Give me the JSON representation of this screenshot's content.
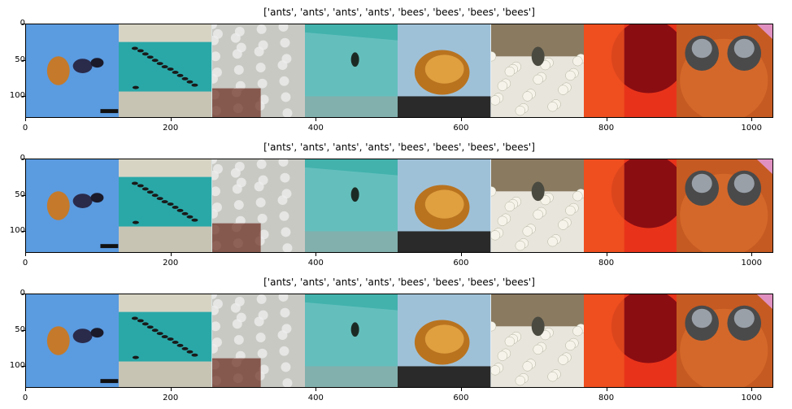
{
  "chart_data": [
    {
      "type": "image-grid",
      "title": "['ants', 'ants', 'ants', 'ants', 'bees', 'bees', 'bees', 'bees']",
      "xlim": [
        0,
        1030
      ],
      "ylim": [
        130,
        0
      ],
      "xticks": [
        0,
        200,
        400,
        600,
        800,
        1000
      ],
      "yticks": [
        0,
        50,
        100
      ],
      "tiles": [
        "ant on blue background",
        "ants on teal jar",
        "ants on crystals",
        "ant on teal water",
        "bee close-up",
        "bee on white flowers",
        "red flower",
        "bees on coneflower"
      ]
    },
    {
      "type": "image-grid",
      "title": "['ants', 'ants', 'ants', 'ants', 'bees', 'bees', 'bees', 'bees']",
      "xlim": [
        0,
        1030
      ],
      "ylim": [
        130,
        0
      ],
      "xticks": [
        0,
        200,
        400,
        600,
        800,
        1000
      ],
      "yticks": [
        0,
        50,
        100
      ],
      "tiles": [
        "ant on blue background",
        "ants on teal jar",
        "ants on crystals",
        "ant on teal water",
        "bee close-up",
        "bee on white flowers",
        "red flower",
        "bees on coneflower"
      ]
    },
    {
      "type": "image-grid",
      "title": "['ants', 'ants', 'ants', 'ants', 'bees', 'bees', 'bees', 'bees']",
      "xlim": [
        0,
        1030
      ],
      "ylim": [
        130,
        0
      ],
      "xticks": [
        0,
        200,
        400,
        600,
        800,
        1000
      ],
      "yticks": [
        0,
        50,
        100
      ],
      "tiles": [
        "ant on blue background",
        "ants on teal jar",
        "ants on crystals",
        "ant on teal water",
        "bee close-up",
        "bee on white flowers",
        "red flower",
        "bees on coneflower"
      ]
    }
  ],
  "tile_palette": [
    {
      "bg": "#5b9be0",
      "fg": "#3a2a1a"
    },
    {
      "bg": "#2aa8a8",
      "fg": "#1a1a1a"
    },
    {
      "bg": "#c9c9c4",
      "fg": "#6a2a1c"
    },
    {
      "bg": "#43b2ad",
      "fg": "#1c2a24"
    },
    {
      "bg": "#9fc1d8",
      "fg": "#b9731f"
    },
    {
      "bg": "#e8e6dc",
      "fg": "#4a4a40"
    },
    {
      "bg": "#e8331a",
      "fg": "#8a0d12"
    },
    {
      "bg": "#c55a22",
      "fg": "#9aa0a8"
    }
  ]
}
